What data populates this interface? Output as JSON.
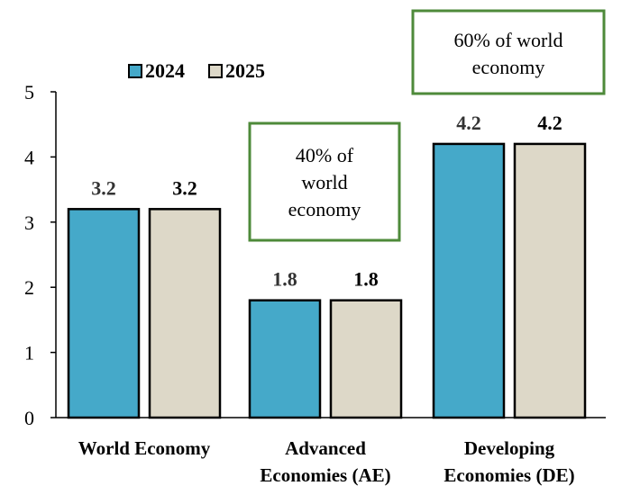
{
  "chart_data": {
    "type": "bar",
    "categories": [
      [
        "World Economy"
      ],
      [
        "Advanced",
        "Economies (AE)"
      ],
      [
        "Developing",
        "Economies (DE)"
      ]
    ],
    "series": [
      {
        "name": "2024",
        "values": [
          3.2,
          1.8,
          4.2
        ],
        "color": "#45a9c9"
      },
      {
        "name": "2025",
        "values": [
          3.2,
          1.8,
          4.2
        ],
        "color": "#ddd8c8"
      }
    ],
    "ylim": [
      0,
      5
    ],
    "yticks": [
      0,
      1,
      2,
      3,
      4,
      5
    ],
    "data_labels": true,
    "legend_position": "top-left",
    "grid": false,
    "annotations": [
      {
        "category": "Advanced Economies (AE)",
        "lines": [
          "40% of",
          "world",
          "economy"
        ],
        "border_color": "#4e8a3a"
      },
      {
        "category": "Developing Economies (DE)",
        "lines": [
          "60% of world",
          "economy"
        ],
        "border_color": "#4e8a3a"
      }
    ],
    "title": "",
    "xlabel": "",
    "ylabel": ""
  }
}
